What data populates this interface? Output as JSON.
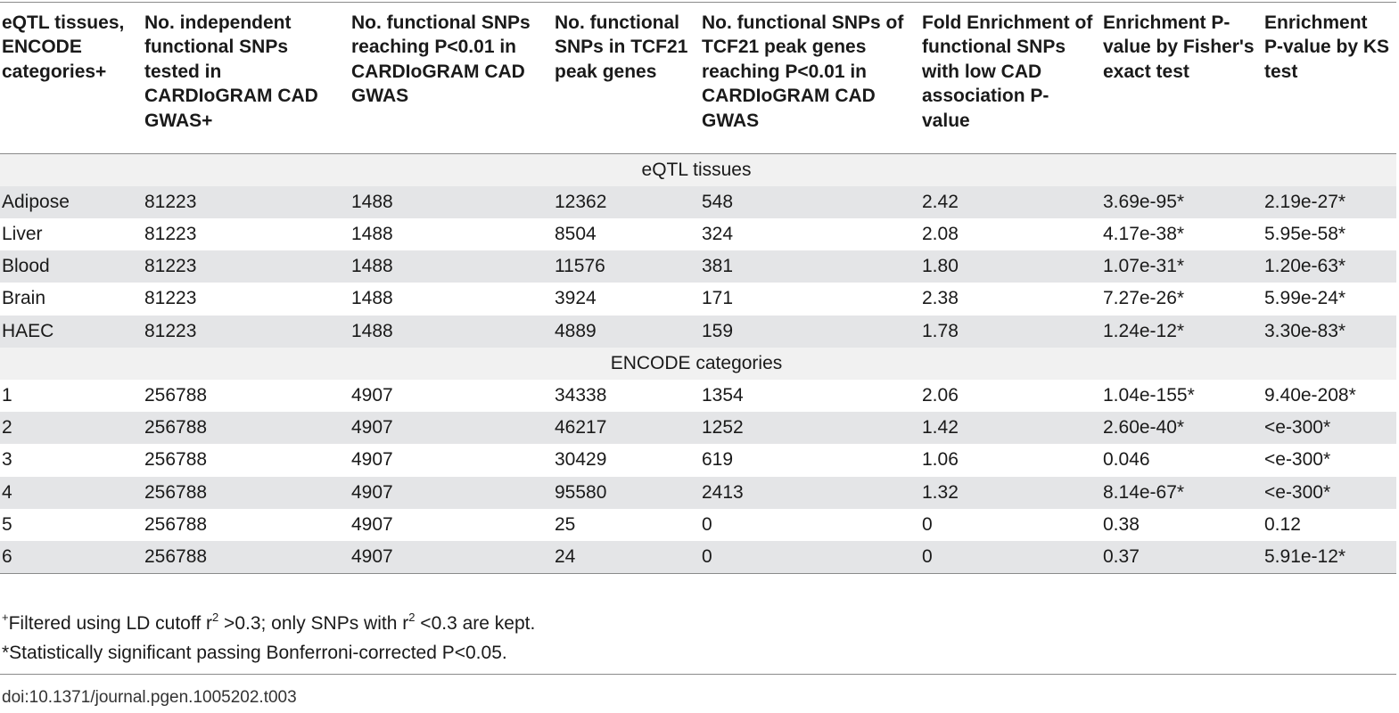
{
  "table": {
    "headers": [
      "eQTL tissues, ENCODE categories+",
      "No. independent functional SNPs tested in CARDIoGRAM CAD GWAS+",
      "No. functional SNPs reaching P<0.01 in CARDIoGRAM CAD GWAS",
      "No. functional SNPs in TCF21 peak genes",
      "No. functional SNPs of TCF21 peak genes reaching P<0.01 in CARDIoGRAM CAD GWAS",
      "Fold Enrichment of functional SNPs with low CAD association P-value",
      "Enrichment P-value by Fisher's exact test",
      "Enrichment P-value by KS test"
    ],
    "sections": [
      {
        "title": "eQTL tissues",
        "rows": [
          [
            "Adipose",
            "81223",
            "1488",
            "12362",
            "548",
            "2.42",
            "3.69e-95*",
            "2.19e-27*"
          ],
          [
            "Liver",
            "81223",
            "1488",
            "8504",
            "324",
            "2.08",
            "4.17e-38*",
            "5.95e-58*"
          ],
          [
            "Blood",
            "81223",
            "1488",
            "11576",
            "381",
            "1.80",
            "1.07e-31*",
            "1.20e-63*"
          ],
          [
            "Brain",
            "81223",
            "1488",
            "3924",
            "171",
            "2.38",
            "7.27e-26*",
            "5.99e-24*"
          ],
          [
            "HAEC",
            "81223",
            "1488",
            "4889",
            "159",
            "1.78",
            "1.24e-12*",
            "3.30e-83*"
          ]
        ]
      },
      {
        "title": "ENCODE categories",
        "rows": [
          [
            "1",
            "256788",
            "4907",
            "34338",
            "1354",
            "2.06",
            "1.04e-155*",
            "9.40e-208*"
          ],
          [
            "2",
            "256788",
            "4907",
            "46217",
            "1252",
            "1.42",
            "2.60e-40*",
            "<e-300*"
          ],
          [
            "3",
            "256788",
            "4907",
            "30429",
            "619",
            "1.06",
            "0.046",
            "<e-300*"
          ],
          [
            "4",
            "256788",
            "4907",
            "95580",
            "2413",
            "1.32",
            "8.14e-67*",
            "<e-300*"
          ],
          [
            "5",
            "256788",
            "4907",
            "25",
            "0",
            "0",
            "0.38",
            "0.12"
          ],
          [
            "6",
            "256788",
            "4907",
            "24",
            "0",
            "0",
            "0.37",
            "5.91e-12*"
          ]
        ]
      }
    ]
  },
  "footnotes": {
    "fn1": {
      "marker": "+",
      "part1": "Filtered using LD cutoff r",
      "sup1": "2",
      "part2": " >0.3; only SNPs with r",
      "sup2": "2",
      "part3": " <0.3 are kept."
    },
    "fn2": "*Statistically significant passing Bonferroni-corrected P<0.05."
  },
  "doi": "doi:10.1371/journal.pgen.1005202.t003"
}
